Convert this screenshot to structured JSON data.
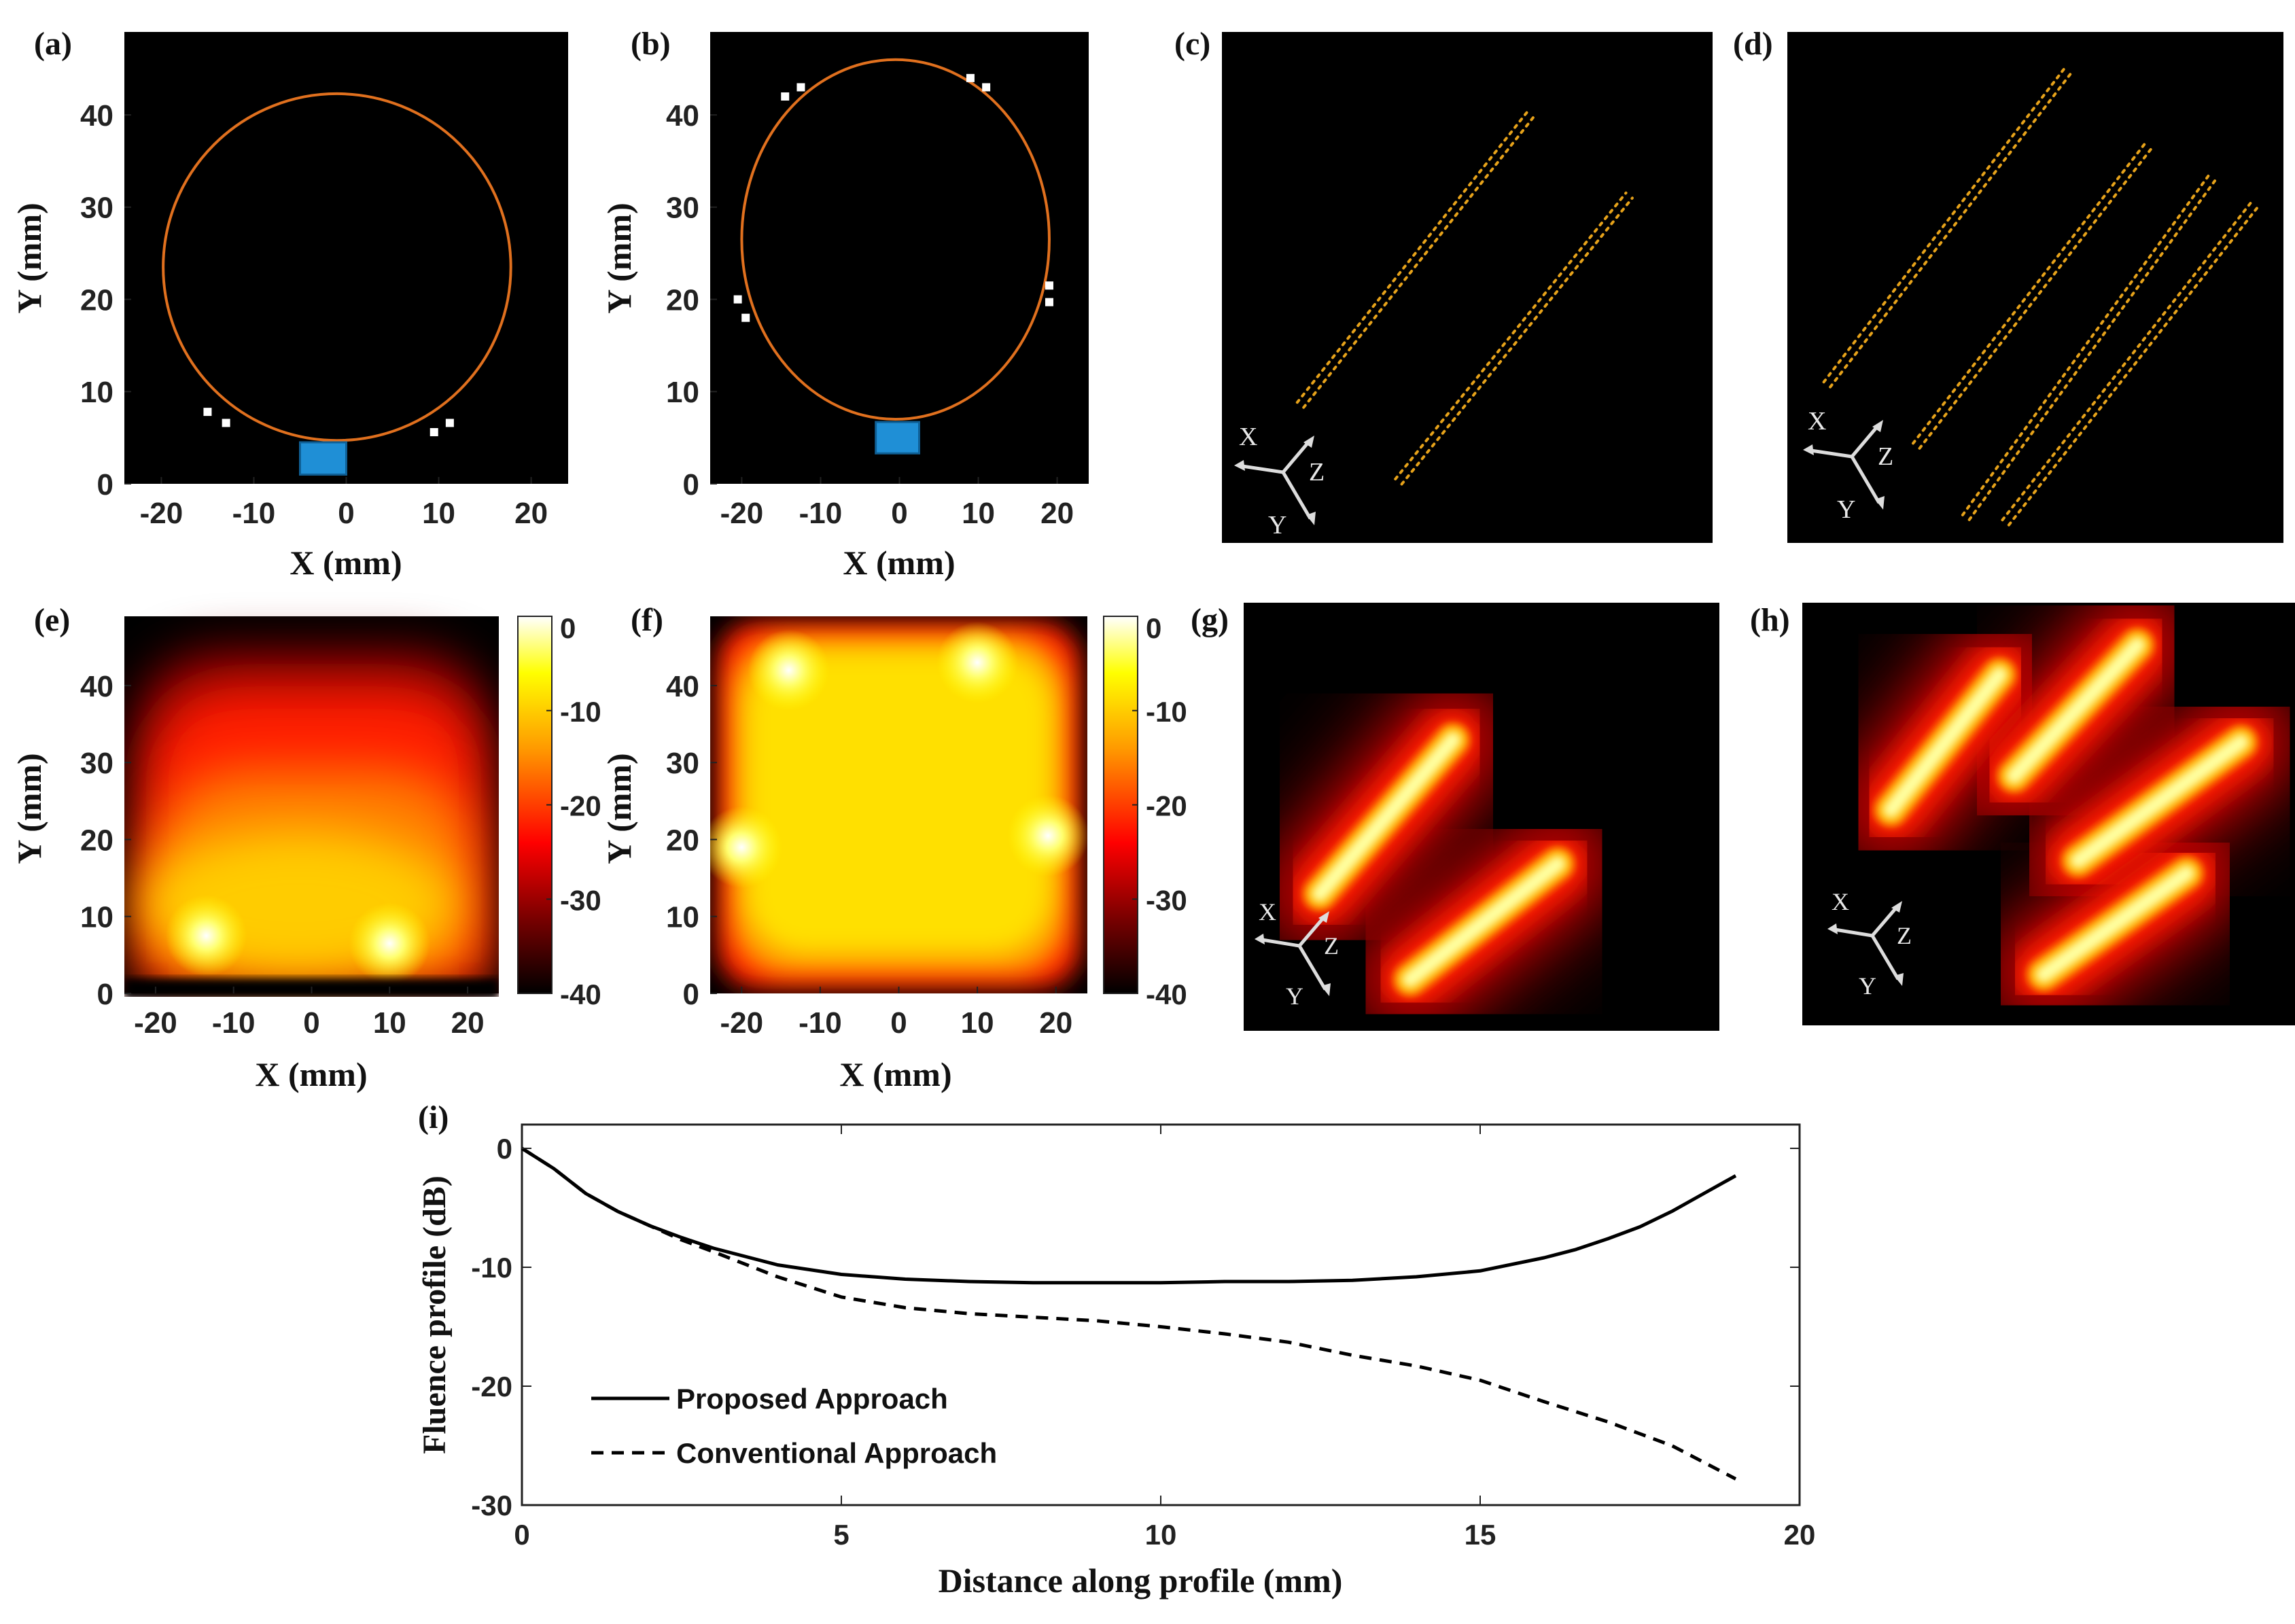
{
  "figure": {
    "panel_labels": [
      "(a)",
      "(b)",
      "(c)",
      "(d)",
      "(e)",
      "(f)",
      "(g)",
      "(h)",
      "(i)"
    ],
    "axis_triad": {
      "x": "X",
      "y": "Y",
      "z": "Z"
    },
    "colors": {
      "background": "#000000",
      "circle": "#e0701e",
      "transducer": "#1f8fd6",
      "marker": "#ffffff",
      "dots": "#e6a21a",
      "axes": "#222222"
    }
  },
  "chart_data": [
    {
      "id": "a",
      "type": "scatter",
      "title": "(a)",
      "xlabel": "X (mm)",
      "ylabel": "Y (mm)",
      "xlim": [
        -24,
        24
      ],
      "ylim": [
        0,
        49
      ],
      "xticks": [
        -20,
        -10,
        0,
        10,
        20
      ],
      "yticks": [
        0,
        10,
        20,
        30,
        40
      ],
      "xtick_labels": [
        "-20",
        "-10",
        "0",
        "10",
        "20"
      ],
      "ytick_labels": [
        "0",
        "10",
        "20",
        "30",
        "40"
      ],
      "circle": {
        "cx": -1,
        "cy": 23.5,
        "r": 18.8
      },
      "transducer": {
        "x0": -5,
        "x1": 0,
        "y0": 1,
        "y1": 4.5
      },
      "markers": [
        [
          -15,
          7.8
        ],
        [
          -13,
          6.6
        ],
        [
          9.5,
          5.6
        ],
        [
          11.2,
          6.6
        ]
      ]
    },
    {
      "id": "b",
      "type": "scatter",
      "title": "(b)",
      "xlabel": "X (mm)",
      "ylabel": "Y (mm)",
      "xlim": [
        -24,
        24
      ],
      "ylim": [
        0,
        49
      ],
      "xticks": [
        -20,
        -10,
        0,
        10,
        20
      ],
      "yticks": [
        0,
        10,
        20,
        30,
        40
      ],
      "xtick_labels": [
        "-20",
        "-10",
        "0",
        "10",
        "20"
      ],
      "ytick_labels": [
        "0",
        "10",
        "20",
        "30",
        "40"
      ],
      "circle": {
        "cx": -0.5,
        "cy": 26.5,
        "r": 19.5
      },
      "transducer": {
        "x0": -3,
        "x1": 2.5,
        "y0": 3.3,
        "y1": 6.7
      },
      "markers": [
        [
          -14.5,
          42
        ],
        [
          -12.5,
          43
        ],
        [
          9,
          44
        ],
        [
          11,
          43
        ],
        [
          -20.5,
          20
        ],
        [
          -19.5,
          18
        ],
        [
          19,
          21.5
        ],
        [
          19,
          19.7
        ]
      ]
    },
    {
      "id": "c",
      "type": "scatter",
      "title": "(c)",
      "description_units": "normalized 3D view",
      "segments": [
        {
          "start": [
            0.16,
            0.27
          ],
          "end": [
            0.63,
            0.84
          ]
        },
        {
          "start": [
            0.36,
            0.12
          ],
          "end": [
            0.83,
            0.68
          ]
        }
      ]
    },
    {
      "id": "d",
      "type": "scatter",
      "title": "(d)",
      "description_units": "normalized 3D view",
      "segments": [
        {
          "start": [
            0.08,
            0.31
          ],
          "end": [
            0.57,
            0.93
          ]
        },
        {
          "start": [
            0.26,
            0.19
          ],
          "end": [
            0.73,
            0.78
          ]
        },
        {
          "start": [
            0.36,
            0.05
          ],
          "end": [
            0.86,
            0.72
          ]
        },
        {
          "start": [
            0.44,
            0.04
          ],
          "end": [
            0.94,
            0.66
          ]
        }
      ]
    },
    {
      "id": "e",
      "type": "heatmap",
      "title": "(e)",
      "xlabel": "X (mm)",
      "ylabel": "Y (mm)",
      "xlim": [
        -24,
        24
      ],
      "ylim": [
        0,
        49
      ],
      "xticks": [
        -20,
        -10,
        0,
        10,
        20
      ],
      "yticks": [
        0,
        10,
        20,
        30,
        40
      ],
      "xtick_labels": [
        "-20",
        "-10",
        "0",
        "10",
        "20"
      ],
      "ytick_labels": [
        "0",
        "10",
        "20",
        "30",
        "40"
      ],
      "colorbar": {
        "ticks": [
          0,
          -10,
          -20,
          -30,
          -40
        ],
        "tick_labels": [
          "0",
          "-10",
          "-20",
          "-30",
          "-40"
        ],
        "range": [
          -40,
          0
        ]
      },
      "hotspots": [
        [
          -13.5,
          7.5
        ],
        [
          10,
          6.5
        ]
      ]
    },
    {
      "id": "f",
      "type": "heatmap",
      "title": "(f)",
      "xlabel": "X (mm)",
      "ylabel": "Y (mm)",
      "xlim": [
        -24,
        24
      ],
      "ylim": [
        0,
        49
      ],
      "xticks": [
        -20,
        -10,
        0,
        10,
        20
      ],
      "yticks": [
        0,
        10,
        20,
        30,
        40
      ],
      "xtick_labels": [
        "-20",
        "-10",
        "0",
        "10",
        "20"
      ],
      "ytick_labels": [
        "0",
        "10",
        "20",
        "30",
        "40"
      ],
      "colorbar": {
        "ticks": [
          0,
          -10,
          -20,
          -30,
          -40
        ],
        "tick_labels": [
          "0",
          "-10",
          "-20",
          "-30",
          "-40"
        ],
        "range": [
          -40,
          0
        ]
      },
      "hotspots": [
        [
          -14,
          42
        ],
        [
          10,
          43
        ],
        [
          -20,
          19
        ],
        [
          19,
          20.5
        ]
      ]
    },
    {
      "id": "g",
      "type": "heatmap",
      "title": "(g)",
      "description_units": "normalized 3D view",
      "bars": [
        {
          "start": [
            0.16,
            0.32
          ],
          "end": [
            0.44,
            0.68
          ]
        },
        {
          "start": [
            0.35,
            0.12
          ],
          "end": [
            0.66,
            0.39
          ]
        }
      ]
    },
    {
      "id": "h",
      "type": "heatmap",
      "title": "(h)",
      "description_units": "normalized 3D view",
      "bars": [
        {
          "start": [
            0.18,
            0.51
          ],
          "end": [
            0.4,
            0.83
          ]
        },
        {
          "start": [
            0.43,
            0.59
          ],
          "end": [
            0.68,
            0.9
          ]
        },
        {
          "start": [
            0.56,
            0.39
          ],
          "end": [
            0.89,
            0.67
          ]
        },
        {
          "start": [
            0.49,
            0.12
          ],
          "end": [
            0.78,
            0.36
          ]
        }
      ]
    },
    {
      "id": "i",
      "type": "line",
      "title": "(i)",
      "xlabel": "Distance along profile (mm)",
      "ylabel": "Fluence profile (dB)",
      "xlim": [
        0,
        20
      ],
      "ylim": [
        -30,
        2
      ],
      "xticks": [
        0,
        5,
        10,
        15,
        20
      ],
      "yticks": [
        0,
        -10,
        -20,
        -30
      ],
      "xtick_labels": [
        "0",
        "5",
        "10",
        "15",
        "20"
      ],
      "ytick_labels": [
        "0",
        "-10",
        "-20",
        "-30"
      ],
      "series": [
        {
          "name": "Proposed Approach",
          "style": "solid",
          "x": [
            0,
            0.5,
            1,
            1.5,
            2,
            2.5,
            3,
            4,
            5,
            6,
            7,
            8,
            9,
            10,
            11,
            12,
            13,
            14,
            15,
            16,
            16.5,
            17,
            17.5,
            18,
            18.5,
            19
          ],
          "y": [
            0,
            -1.7,
            -3.8,
            -5.3,
            -6.5,
            -7.5,
            -8.4,
            -9.8,
            -10.6,
            -11.0,
            -11.2,
            -11.3,
            -11.3,
            -11.3,
            -11.2,
            -11.2,
            -11.1,
            -10.8,
            -10.3,
            -9.2,
            -8.5,
            -7.6,
            -6.6,
            -5.3,
            -3.8,
            -2.3
          ]
        },
        {
          "name": "Conventional Approach",
          "style": "dashed",
          "x": [
            0,
            0.5,
            1,
            1.5,
            2,
            2.5,
            3,
            4,
            5,
            6,
            7,
            8,
            9,
            10,
            11,
            12,
            13,
            14,
            15,
            16,
            17,
            18,
            19
          ],
          "y": [
            0,
            -1.7,
            -3.8,
            -5.3,
            -6.5,
            -7.7,
            -8.7,
            -10.8,
            -12.5,
            -13.4,
            -13.9,
            -14.2,
            -14.5,
            -15.0,
            -15.6,
            -16.3,
            -17.4,
            -18.3,
            -19.5,
            -21.3,
            -23.0,
            -25.0,
            -27.8
          ]
        }
      ]
    }
  ]
}
